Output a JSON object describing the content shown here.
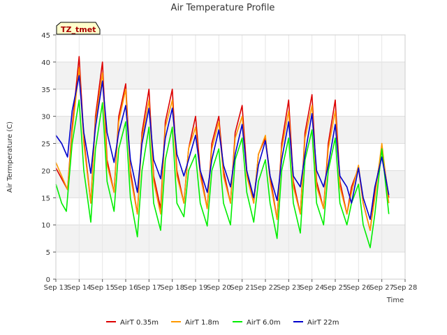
{
  "chart_data": {
    "type": "line",
    "title": "Air Temperature Profile",
    "xlabel": "Time",
    "ylabel": "Air Termperature (C)",
    "badge": "TZ_tmet",
    "ylim": [
      0,
      45
    ],
    "yticks": [
      0,
      5,
      10,
      15,
      20,
      25,
      30,
      35,
      40,
      45
    ],
    "xlim": [
      13,
      28
    ],
    "xticks": [
      {
        "v": 13,
        "label": "Sep 13"
      },
      {
        "v": 14,
        "label": "Sep 14"
      },
      {
        "v": 15,
        "label": "Sep 15"
      },
      {
        "v": 16,
        "label": "Sep 16"
      },
      {
        "v": 17,
        "label": "Sep 17"
      },
      {
        "v": 18,
        "label": "Sep 18"
      },
      {
        "v": 19,
        "label": "Sep 19"
      },
      {
        "v": 20,
        "label": "Sep 20"
      },
      {
        "v": 21,
        "label": "Sep 21"
      },
      {
        "v": 22,
        "label": "Sep 22"
      },
      {
        "v": 23,
        "label": "Sep 23"
      },
      {
        "v": 24,
        "label": "Sep 24"
      },
      {
        "v": 25,
        "label": "Sep 25"
      },
      {
        "v": 26,
        "label": "Sep 26"
      },
      {
        "v": 27,
        "label": "Sep 27"
      },
      {
        "v": 28,
        "label": "Sep 28"
      }
    ],
    "grid": true,
    "legend_position": "bottom",
    "series": [
      {
        "name": "AirT 0.35m",
        "color": "#dd0000",
        "x": [
          13.0,
          13.25,
          13.5,
          13.7,
          14.0,
          14.2,
          14.5,
          14.7,
          15.0,
          15.2,
          15.5,
          15.7,
          16.0,
          16.2,
          16.5,
          16.7,
          17.0,
          17.2,
          17.5,
          17.7,
          18.0,
          18.2,
          18.5,
          18.7,
          19.0,
          19.2,
          19.5,
          19.7,
          20.0,
          20.2,
          20.5,
          20.7,
          21.0,
          21.2,
          21.5,
          21.7,
          22.0,
          22.2,
          22.5,
          22.7,
          23.0,
          23.2,
          23.5,
          23.7,
          24.0,
          24.2,
          24.5,
          24.7,
          25.0,
          25.2,
          25.5,
          25.7,
          26.0,
          26.2,
          26.5,
          26.7,
          27.0,
          27.3
        ],
        "y": [
          20.5,
          18.5,
          16.5,
          28,
          41,
          26,
          14,
          30,
          40,
          22,
          16,
          30,
          36,
          20,
          12,
          27,
          35,
          19,
          13,
          29,
          35,
          20,
          14,
          24,
          30,
          20,
          13,
          25,
          30,
          20,
          14,
          27,
          32,
          20,
          14,
          23,
          26,
          19,
          11,
          25,
          33,
          18,
          12,
          27,
          34,
          18,
          13,
          25,
          33,
          18,
          12,
          17,
          20.5,
          14,
          9,
          16,
          24,
          15
        ]
      },
      {
        "name": "AirT 1.8m",
        "color": "#ff9900",
        "x": [
          13.0,
          13.25,
          13.5,
          13.7,
          14.0,
          14.2,
          14.5,
          14.7,
          15.0,
          15.2,
          15.5,
          15.7,
          16.0,
          16.2,
          16.5,
          16.7,
          17.0,
          17.2,
          17.5,
          17.7,
          18.0,
          18.2,
          18.5,
          18.7,
          19.0,
          19.2,
          19.5,
          19.7,
          20.0,
          20.2,
          20.5,
          20.7,
          21.0,
          21.2,
          21.5,
          21.7,
          22.0,
          22.2,
          22.5,
          22.7,
          23.0,
          23.2,
          23.5,
          23.7,
          24.0,
          24.2,
          24.5,
          24.7,
          25.0,
          25.2,
          25.5,
          25.7,
          26.0,
          26.2,
          26.5,
          26.7,
          27.0,
          27.3
        ],
        "y": [
          21.5,
          19,
          16.5,
          27,
          39,
          25,
          14,
          29,
          38,
          21,
          16,
          29,
          35,
          19,
          12,
          26,
          33,
          18,
          12,
          28,
          33,
          19,
          14,
          24,
          28,
          19,
          13,
          24,
          29,
          19,
          14,
          26,
          30,
          19,
          14,
          23,
          26.5,
          18,
          11,
          24,
          31,
          17,
          12,
          26,
          32,
          17,
          13,
          24,
          31,
          17,
          12,
          16,
          21,
          14,
          9,
          15,
          25,
          14
        ]
      },
      {
        "name": "AirT 6.0m",
        "color": "#00ee00",
        "x": [
          13.0,
          13.25,
          13.45,
          13.7,
          14.0,
          14.2,
          14.5,
          14.7,
          15.0,
          15.2,
          15.5,
          15.7,
          16.0,
          16.2,
          16.5,
          16.7,
          17.0,
          17.2,
          17.5,
          17.7,
          18.0,
          18.2,
          18.5,
          18.7,
          19.0,
          19.2,
          19.5,
          19.7,
          20.0,
          20.2,
          20.5,
          20.7,
          21.0,
          21.2,
          21.5,
          21.7,
          22.0,
          22.2,
          22.5,
          22.7,
          23.0,
          23.2,
          23.5,
          23.7,
          24.0,
          24.2,
          24.5,
          24.7,
          25.0,
          25.2,
          25.5,
          25.7,
          26.0,
          26.2,
          26.5,
          26.7,
          27.0,
          27.3
        ],
        "y": [
          17.5,
          14,
          12.5,
          25,
          33,
          20,
          10.5,
          24,
          32.5,
          18,
          12.5,
          24,
          29,
          15,
          7.8,
          20,
          28,
          14,
          9,
          22,
          28,
          14,
          11.5,
          20,
          23,
          14,
          9.8,
          20,
          24,
          14,
          10,
          22,
          26,
          16,
          10.5,
          18,
          22,
          14,
          7.5,
          20,
          26,
          14,
          8.5,
          22,
          27.5,
          14,
          10,
          20,
          26,
          14,
          10,
          14,
          17.5,
          10,
          5.8,
          12,
          24,
          12
        ]
      },
      {
        "name": "AirT 22m",
        "color": "#0000cc",
        "x": [
          13.0,
          13.25,
          13.5,
          13.7,
          14.0,
          14.2,
          14.5,
          14.7,
          15.0,
          15.2,
          15.5,
          15.7,
          16.0,
          16.2,
          16.5,
          16.7,
          17.0,
          17.2,
          17.5,
          17.7,
          18.0,
          18.2,
          18.5,
          18.7,
          19.0,
          19.2,
          19.5,
          19.7,
          20.0,
          20.2,
          20.5,
          20.7,
          21.0,
          21.2,
          21.5,
          21.7,
          22.0,
          22.2,
          22.5,
          22.7,
          23.0,
          23.2,
          23.5,
          23.7,
          24.0,
          24.2,
          24.5,
          24.7,
          25.0,
          25.2,
          25.5,
          25.7,
          26.0,
          26.2,
          26.5,
          26.7,
          27.0,
          27.3
        ],
        "y": [
          26.5,
          25,
          22.5,
          31,
          37.5,
          27,
          19.5,
          28,
          36.5,
          27,
          21.5,
          27,
          32,
          22,
          16,
          25,
          31.5,
          22,
          18.5,
          26,
          31.5,
          23,
          19,
          22,
          26.5,
          20,
          16,
          22,
          27.5,
          21,
          17,
          23,
          28.5,
          20,
          15,
          21,
          25.5,
          19,
          14.5,
          22,
          29,
          19,
          17,
          23,
          30.5,
          20,
          17,
          21,
          28.5,
          19,
          17,
          14,
          20.5,
          15,
          11,
          17,
          22.5,
          15.5
        ]
      }
    ]
  }
}
